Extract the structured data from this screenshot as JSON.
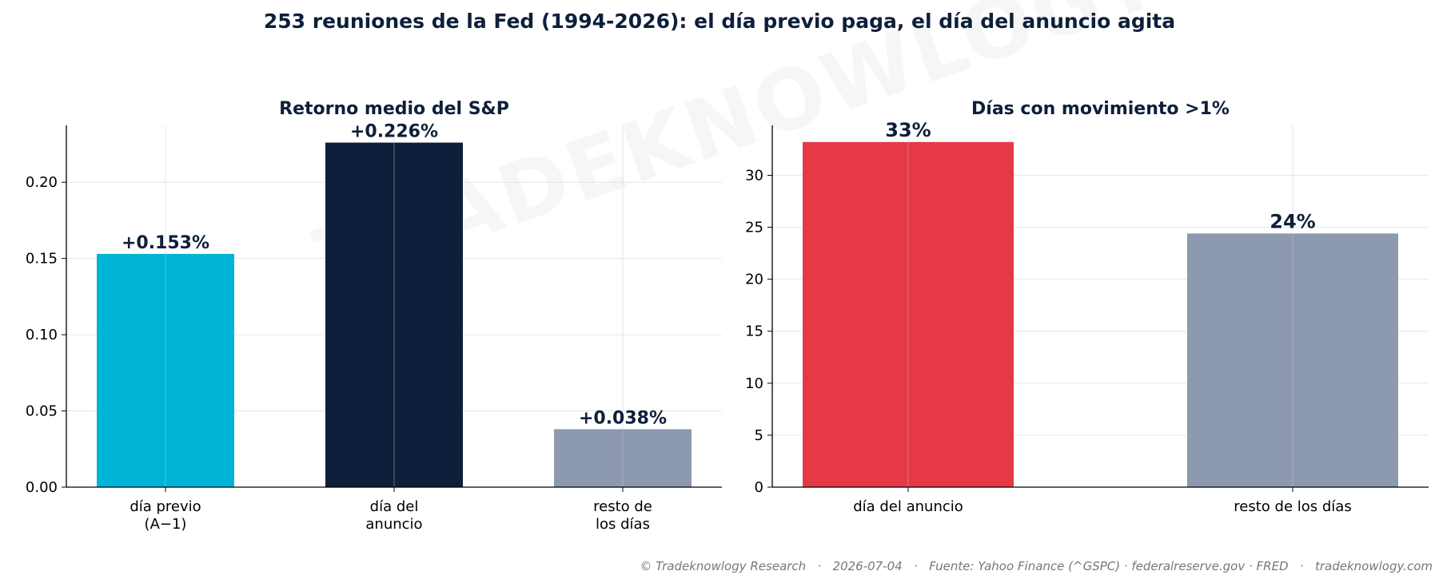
{
  "figure": {
    "title": "253 reuniones de la Fed (1994-2026): el día previo paga, el día del anuncio agita",
    "footer": "© Tradeknowlogy Research   ·   2026-07-04   ·   Fuente: Yahoo Finance (^GSPC) · federalreserve.gov · FRED   ·   tradeknowlogy.com",
    "watermark": "TRADEKNOWLOGY"
  },
  "chart_data": [
    {
      "type": "bar",
      "title": "Retorno medio del S&P",
      "xlabel": "",
      "ylabel": "",
      "categories": [
        "día previo\n(A−1)",
        "día del\nanuncio",
        "resto de\nlos días"
      ],
      "values": [
        0.153,
        0.226,
        0.038
      ],
      "data_labels": [
        "+0.153%",
        "+0.226%",
        "+0.038%"
      ],
      "colors": [
        "#00b4d8",
        "#0d1f3a",
        "#8d99ae"
      ],
      "ylim": [
        0,
        0.2373
      ],
      "yticks": [
        "0.00",
        "0.05",
        "0.10",
        "0.15",
        "0.20"
      ],
      "ytick_values": [
        0,
        0.05,
        0.1,
        0.15,
        0.2
      ],
      "grid": true,
      "legend": "none"
    },
    {
      "type": "bar",
      "title": "Días con movimiento >1%",
      "xlabel": "",
      "ylabel": "",
      "categories": [
        "día del anuncio",
        "resto de los días"
      ],
      "values": [
        33.2,
        24.4
      ],
      "data_labels": [
        "33%",
        "24%"
      ],
      "colors": [
        "#e63946",
        "#8d99ae"
      ],
      "ylim": [
        0,
        34.8
      ],
      "yticks": [
        "0",
        "5",
        "10",
        "15",
        "20",
        "25",
        "30"
      ],
      "ytick_values": [
        0,
        5,
        10,
        15,
        20,
        25,
        30
      ],
      "grid": true,
      "legend": "none"
    }
  ]
}
